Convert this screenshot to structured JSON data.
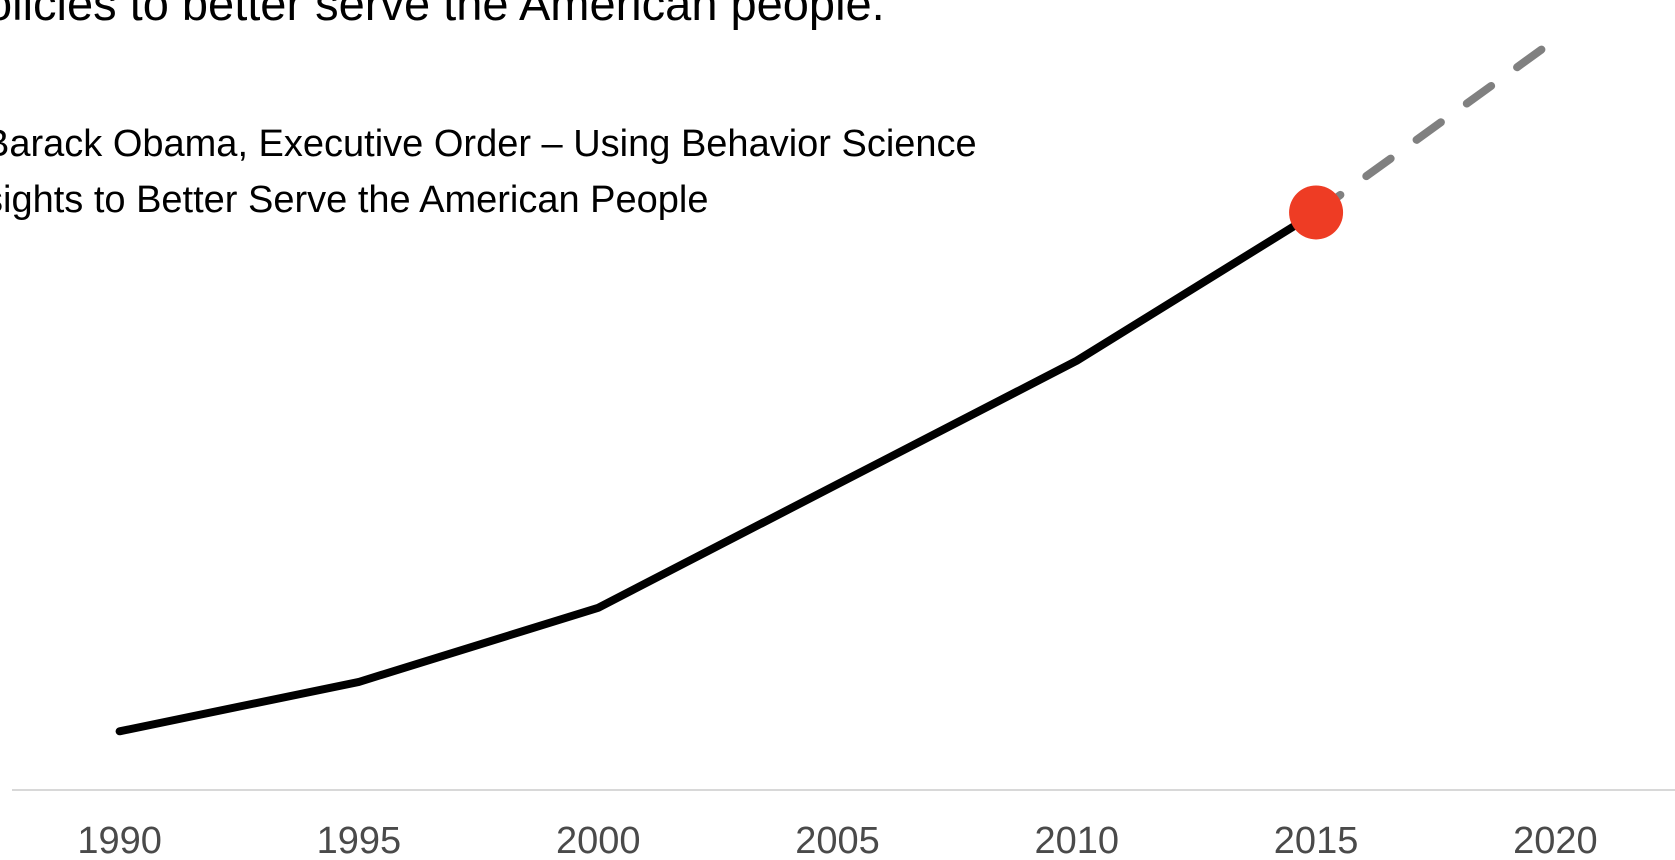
{
  "quote": {
    "text": "olicies to better serve the American people.",
    "attribution_lines": [
      "Barack Obama, Executive Order – Using Behavior Science",
      "sights to Better Serve the American People"
    ]
  },
  "colors": {
    "line": "#000000",
    "projection": "#808080",
    "highlight": "#ee3c24",
    "axis": "#cccccc",
    "tick_text": "#4a4a4a"
  },
  "chart_data": {
    "type": "line",
    "title": "",
    "xlabel": "",
    "ylabel": "",
    "categories": [
      "1990",
      "1995",
      "2000",
      "2005",
      "2010",
      "2015",
      "2020"
    ],
    "series": [
      {
        "x": [
          1990,
          1995,
          2000,
          2005,
          2010,
          2015
        ],
        "values": [
          11,
          16,
          23.5,
          36,
          48.5,
          63.5
        ]
      },
      {
        "style": "dashed",
        "x": [
          2015,
          2020
        ],
        "values": [
          63.5,
          81
        ]
      }
    ],
    "highlight_point": {
      "x": 2015,
      "y": 63.5
    },
    "xlim": [
      1987.5,
      2022.5
    ],
    "ylim": [
      0,
      85
    ],
    "grid": false,
    "legend": "none"
  }
}
